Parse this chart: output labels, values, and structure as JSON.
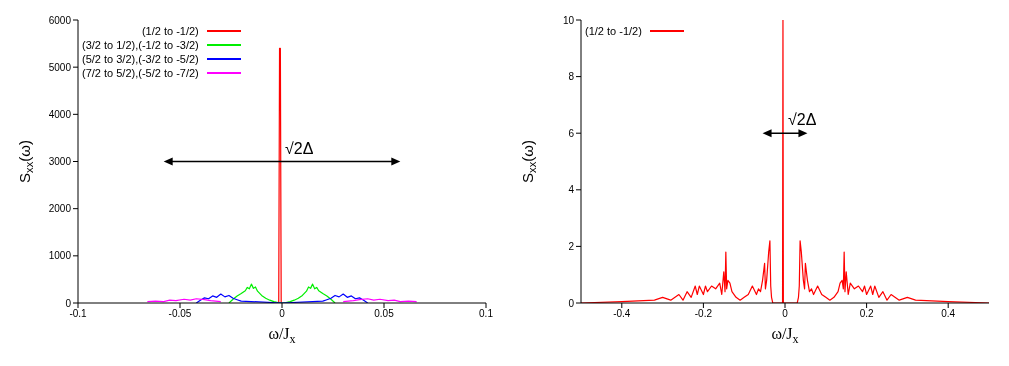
{
  "chart_data": [
    {
      "type": "line",
      "xlabel": "ω/J$_{x}$",
      "ylabel": "S$_{xx}$(ω)",
      "xlim": [
        -0.1,
        0.1
      ],
      "xticks": [
        -0.1,
        -0.05,
        0,
        0.05,
        0.1
      ],
      "ylim": [
        0,
        6000
      ],
      "yticks": [
        0,
        1000,
        2000,
        3000,
        4000,
        5000,
        6000
      ],
      "legend": "top left",
      "marker": "none",
      "line_style": "solid",
      "annotations": [
        {
          "text": "√2Δ",
          "x": 0,
          "y": 3000
        }
      ],
      "series": [
        {
          "name": "(1/2 to -1/2)",
          "color": "#ff0000",
          "x": [
            -0.0016,
            -0.0012,
            -0.0008,
            -0.0004
          ],
          "values": [
            0,
            5400,
            5400,
            0
          ]
        },
        {
          "name": "(3/2 to 1/2),(-1/2 to -3/2)",
          "color": "#00ee00",
          "x": [
            -0.026,
            -0.024,
            -0.022,
            -0.02,
            -0.018,
            -0.017,
            -0.016,
            -0.015,
            -0.014,
            -0.013,
            -0.012,
            -0.01,
            -0.008,
            -0.006,
            -0.004,
            -0.002,
            0,
            0.002,
            0.004,
            0.006,
            0.008,
            0.01,
            0.012,
            0.013,
            0.014,
            0.015,
            0.016,
            0.017,
            0.018,
            0.02,
            0.022,
            0.024,
            0.026
          ],
          "values": [
            0,
            80,
            150,
            200,
            260,
            330,
            300,
            400,
            310,
            340,
            250,
            160,
            100,
            60,
            30,
            10,
            0,
            10,
            30,
            60,
            100,
            160,
            250,
            340,
            310,
            400,
            300,
            330,
            260,
            200,
            150,
            80,
            0
          ]
        },
        {
          "name": "(5/2 to 3/2),(-3/2 to -5/2)",
          "color": "#0000ff",
          "x": [
            -0.042,
            -0.04,
            -0.038,
            -0.036,
            -0.034,
            -0.032,
            -0.03,
            -0.028,
            -0.026,
            -0.024,
            -0.022,
            -0.02,
            0,
            0.02,
            0.022,
            0.024,
            0.026,
            0.028,
            0.03,
            0.032,
            0.034,
            0.036,
            0.038,
            0.04,
            0.042
          ],
          "values": [
            0,
            60,
            110,
            90,
            150,
            120,
            190,
            130,
            160,
            100,
            70,
            40,
            0,
            40,
            70,
            100,
            160,
            130,
            190,
            120,
            150,
            90,
            110,
            60,
            0
          ]
        },
        {
          "name": "(7/2 to 5/2),(-5/2 to -7/2)",
          "color": "#ff00ff",
          "x": [
            -0.066,
            -0.062,
            -0.058,
            -0.055,
            -0.052,
            -0.048,
            -0.045,
            -0.042,
            -0.038,
            -0.035,
            -0.03,
            0,
            0.03,
            0.035,
            0.038,
            0.042,
            0.045,
            0.048,
            0.052,
            0.055,
            0.058,
            0.062,
            0.066
          ],
          "values": [
            30,
            40,
            30,
            60,
            50,
            80,
            60,
            90,
            70,
            50,
            30,
            null,
            30,
            50,
            70,
            90,
            60,
            80,
            50,
            60,
            30,
            40,
            30
          ]
        }
      ]
    },
    {
      "type": "line",
      "xlabel": "ω/J$_{x}$",
      "ylabel": "S$_{xx}$(ω)",
      "xlim": [
        -0.5,
        0.5
      ],
      "xticks": [
        -0.4,
        -0.2,
        0,
        0.2,
        0.4
      ],
      "ylim": [
        0,
        10
      ],
      "yticks": [
        0,
        2,
        4,
        6,
        8,
        10
      ],
      "legend": "top left",
      "marker": "none",
      "line_style": "solid",
      "annotations": [
        {
          "text": "√2Δ",
          "x": 0,
          "y": 6
        }
      ],
      "series": [
        {
          "name": "(1/2 to -1/2)",
          "color": "#ff0000",
          "x": [
            -0.5,
            -0.4,
            -0.32,
            -0.3,
            -0.28,
            -0.26,
            -0.25,
            -0.24,
            -0.23,
            -0.22,
            -0.215,
            -0.21,
            -0.2,
            -0.195,
            -0.19,
            -0.18,
            -0.17,
            -0.16,
            -0.155,
            -0.15,
            -0.147,
            -0.145,
            -0.143,
            -0.14,
            -0.135,
            -0.13,
            -0.12,
            -0.11,
            -0.1,
            -0.09,
            -0.08,
            -0.07,
            -0.065,
            -0.06,
            -0.055,
            -0.05,
            -0.048,
            -0.045,
            -0.04,
            -0.037,
            -0.035,
            -0.033,
            -0.03,
            -0.025,
            -0.01,
            -0.006,
            -0.005,
            -0.004,
            0.01,
            0.025,
            0.03,
            0.033,
            0.035,
            0.037,
            0.04,
            0.045,
            0.048,
            0.05,
            0.055,
            0.06,
            0.065,
            0.07,
            0.08,
            0.09,
            0.1,
            0.11,
            0.12,
            0.13,
            0.135,
            0.14,
            0.143,
            0.145,
            0.147,
            0.15,
            0.155,
            0.16,
            0.17,
            0.18,
            0.19,
            0.195,
            0.2,
            0.21,
            0.215,
            0.22,
            0.23,
            0.24,
            0.25,
            0.26,
            0.28,
            0.3,
            0.32,
            0.4,
            0.5
          ],
          "values": [
            0,
            0.05,
            0.1,
            0.2,
            0.1,
            0.3,
            0.1,
            0.4,
            0.2,
            0.6,
            0.3,
            0.6,
            0.3,
            0.6,
            0.4,
            0.6,
            0.5,
            0.7,
            0.3,
            1.1,
            0.4,
            1.8,
            0.5,
            0.8,
            0.7,
            0.4,
            0.2,
            0.1,
            0.2,
            0.3,
            0.6,
            0.3,
            0.5,
            0.4,
            0.8,
            1.4,
            0.5,
            0.8,
            1.8,
            2.2,
            0.6,
            0.2,
            0,
            0,
            0,
            0,
            10,
            0,
            0,
            0,
            0,
            0.2,
            0.6,
            2.2,
            1.8,
            0.8,
            0.5,
            1.4,
            0.8,
            0.4,
            0.5,
            0.3,
            0.6,
            0.3,
            0.2,
            0.1,
            0.2,
            0.4,
            0.7,
            0.8,
            0.5,
            1.8,
            0.4,
            1.1,
            0.3,
            0.7,
            0.5,
            0.6,
            0.4,
            0.6,
            0.3,
            0.6,
            0.3,
            0.6,
            0.2,
            0.4,
            0.1,
            0.3,
            0.1,
            0.2,
            0.1,
            0.05,
            0
          ]
        }
      ]
    }
  ]
}
